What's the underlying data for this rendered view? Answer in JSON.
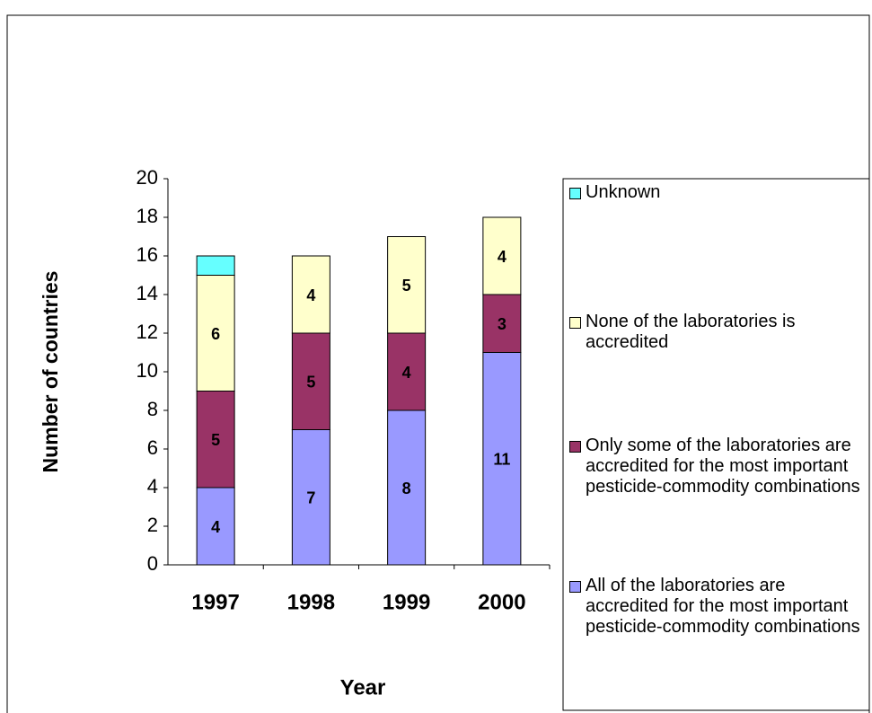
{
  "chart_data": {
    "type": "stacked_bar",
    "x_label": "Year",
    "y_label": "Number of countries",
    "categories": [
      "1997",
      "1998",
      "1999",
      "2000"
    ],
    "series": [
      {
        "name": "All of the laboratories are accredited for the most important pesticide-commodity combinations",
        "color": "#9999ff",
        "values": [
          4,
          7,
          8,
          11
        ],
        "labels": true
      },
      {
        "name": "Only some of the laboratories are accredited for the most important pesticide-commodity combinations",
        "color": "#993366",
        "values": [
          5,
          5,
          4,
          3
        ],
        "labels": true
      },
      {
        "name": "None of the laboratories is accredited",
        "color": "#ffffcc",
        "values": [
          6,
          4,
          5,
          4
        ],
        "labels": true
      },
      {
        "name": "Unknown",
        "color": "#66ffff",
        "values": [
          1,
          0,
          0,
          0
        ],
        "labels": false
      }
    ],
    "ylim": [
      0,
      20
    ],
    "yticks": [
      0,
      2,
      4,
      6,
      8,
      10,
      12,
      14,
      16,
      18,
      20
    ],
    "grid": false,
    "legend": "right"
  }
}
